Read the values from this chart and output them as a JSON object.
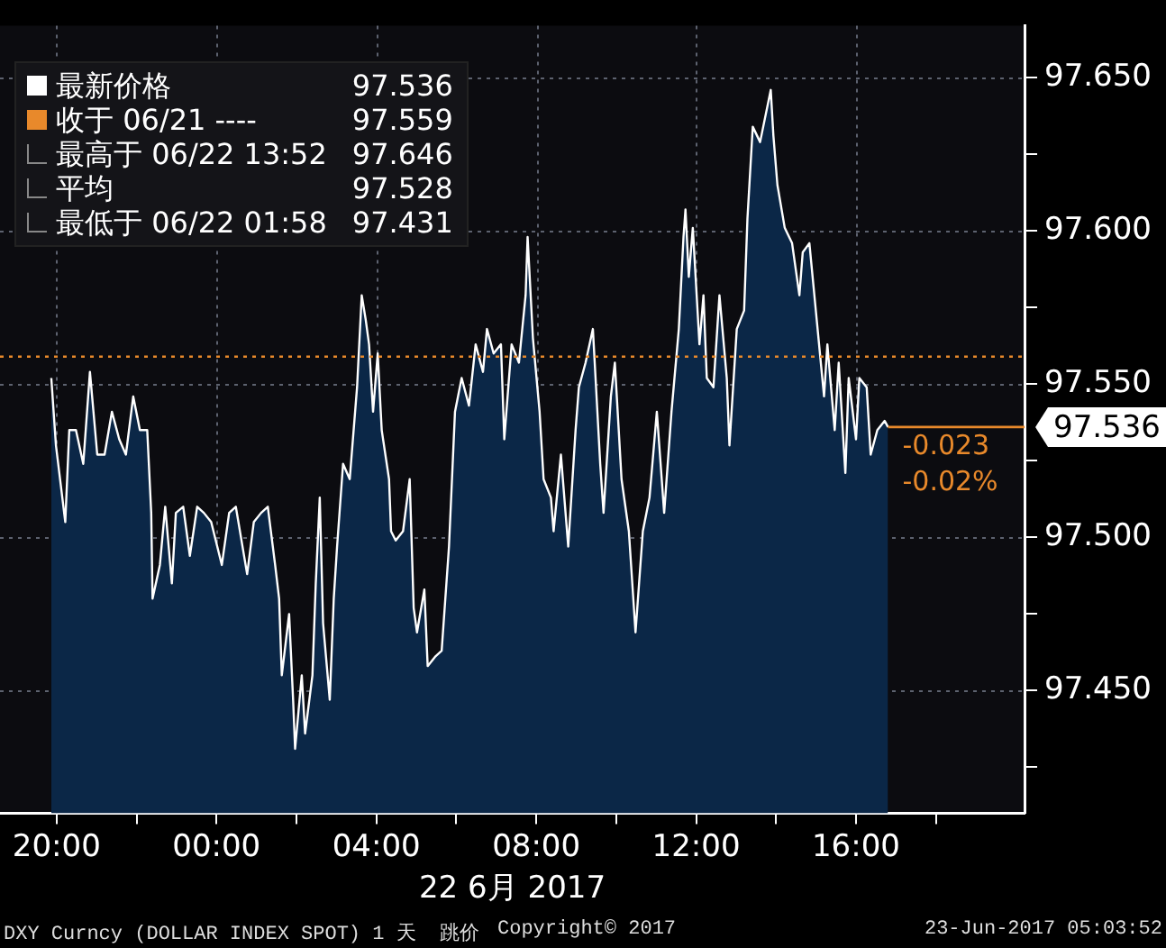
{
  "chart_data": {
    "type": "area",
    "xlabel": "22 6月 2017",
    "x": [
      "2017-06-21T19:52",
      "2017-06-21T19:59",
      "2017-06-21T20:13",
      "2017-06-21T20:19",
      "2017-06-21T20:29",
      "2017-06-21T20:40",
      "2017-06-21T20:50",
      "2017-06-21T21:01",
      "2017-06-21T21:12",
      "2017-06-21T21:23",
      "2017-06-21T21:34",
      "2017-06-21T21:44",
      "2017-06-21T21:55",
      "2017-06-21T22:05",
      "2017-06-21T22:16",
      "2017-06-21T22:22",
      "2017-06-21T22:24",
      "2017-06-21T22:35",
      "2017-06-21T22:43",
      "2017-06-21T22:53",
      "2017-06-21T22:59",
      "2017-06-21T23:10",
      "2017-06-21T23:20",
      "2017-06-21T23:31",
      "2017-06-21T23:41",
      "2017-06-21T23:52",
      "2017-06-22T00:08",
      "2017-06-22T00:19",
      "2017-06-22T00:29",
      "2017-06-22T00:46",
      "2017-06-22T00:56",
      "2017-06-22T01:07",
      "2017-06-22T01:17",
      "2017-06-22T01:28",
      "2017-06-22T01:34",
      "2017-06-22T01:38",
      "2017-06-22T01:49",
      "2017-06-22T01:55",
      "2017-06-22T01:58",
      "2017-06-22T02:08",
      "2017-06-22T02:13",
      "2017-06-22T02:24",
      "2017-06-22T02:29",
      "2017-06-22T02:35",
      "2017-06-22T02:40",
      "2017-06-22T02:50",
      "2017-06-22T02:56",
      "2017-06-22T03:01",
      "2017-06-22T03:10",
      "2017-06-22T03:20",
      "2017-06-22T03:31",
      "2017-06-22T03:38",
      "2017-06-22T03:44",
      "2017-06-22T03:49",
      "2017-06-22T03:55",
      "2017-06-22T04:02",
      "2017-06-22T04:08",
      "2017-06-22T04:19",
      "2017-06-22T04:22",
      "2017-06-22T04:29",
      "2017-06-22T04:40",
      "2017-06-22T04:50",
      "2017-06-22T04:56",
      "2017-06-22T05:01",
      "2017-06-22T05:12",
      "2017-06-22T05:17",
      "2017-06-22T05:28",
      "2017-06-22T05:38",
      "2017-06-22T05:49",
      "2017-06-22T05:58",
      "2017-06-22T06:08",
      "2017-06-22T06:19",
      "2017-06-22T06:29",
      "2017-06-22T06:40",
      "2017-06-22T06:46",
      "2017-06-22T06:56",
      "2017-06-22T07:07",
      "2017-06-22T07:12",
      "2017-06-22T07:23",
      "2017-06-22T07:34",
      "2017-06-22T07:44",
      "2017-06-22T07:47",
      "2017-06-22T07:55",
      "2017-06-22T08:05",
      "2017-06-22T08:11",
      "2017-06-22T08:22",
      "2017-06-22T08:26",
      "2017-06-22T08:37",
      "2017-06-22T08:48",
      "2017-06-22T08:59",
      "2017-06-22T09:04",
      "2017-06-22T09:14",
      "2017-06-22T09:25",
      "2017-06-22T09:36",
      "2017-06-22T09:41",
      "2017-06-22T09:52",
      "2017-06-22T09:58",
      "2017-06-22T10:08",
      "2017-06-22T10:19",
      "2017-06-22T10:29",
      "2017-06-22T10:40",
      "2017-06-22T10:50",
      "2017-06-22T11:01",
      "2017-06-22T11:12",
      "2017-06-22T11:23",
      "2017-06-22T11:34",
      "2017-06-22T11:41",
      "2017-06-22T11:44",
      "2017-06-22T11:49",
      "2017-06-22T11:55",
      "2017-06-22T12:05",
      "2017-06-22T12:11",
      "2017-06-22T12:16",
      "2017-06-22T12:26",
      "2017-06-22T12:35",
      "2017-06-22T12:46",
      "2017-06-22T12:50",
      "2017-06-22T13:01",
      "2017-06-22T13:12",
      "2017-06-22T13:17",
      "2017-06-22T13:25",
      "2017-06-22T13:36",
      "2017-06-22T13:52",
      "2017-06-22T13:56",
      "2017-06-22T14:02",
      "2017-06-22T14:13",
      "2017-06-22T14:24",
      "2017-06-22T14:35",
      "2017-06-22T14:40",
      "2017-06-22T14:50",
      "2017-06-22T15:01",
      "2017-06-22T15:12",
      "2017-06-22T15:17",
      "2017-06-22T15:28",
      "2017-06-22T15:34",
      "2017-06-22T15:44",
      "2017-06-22T15:49",
      "2017-06-22T16:00",
      "2017-06-22T16:05",
      "2017-06-22T16:16",
      "2017-06-22T16:22",
      "2017-06-22T16:32",
      "2017-06-22T16:43",
      "2017-06-22T16:48"
    ],
    "series": [
      {
        "name": "最新价格",
        "color": "#ffffff",
        "values": [
          97.552,
          97.53,
          97.505,
          97.535,
          97.535,
          97.524,
          97.554,
          97.527,
          97.527,
          97.541,
          97.532,
          97.527,
          97.546,
          97.535,
          97.535,
          97.508,
          97.48,
          97.491,
          97.51,
          97.485,
          97.508,
          97.51,
          97.494,
          97.51,
          97.508,
          97.505,
          97.491,
          97.508,
          97.51,
          97.488,
          97.505,
          97.508,
          97.51,
          97.491,
          97.48,
          97.455,
          97.475,
          97.447,
          97.431,
          97.455,
          97.436,
          97.455,
          97.485,
          97.513,
          97.472,
          97.447,
          97.48,
          97.497,
          97.524,
          97.519,
          97.549,
          97.579,
          97.571,
          97.563,
          97.541,
          97.56,
          97.535,
          97.519,
          97.502,
          97.499,
          97.502,
          97.519,
          97.477,
          97.469,
          97.483,
          97.458,
          97.461,
          97.463,
          97.497,
          97.541,
          97.552,
          97.543,
          97.563,
          97.554,
          97.568,
          97.56,
          97.563,
          97.532,
          97.563,
          97.557,
          97.579,
          97.598,
          97.565,
          97.541,
          97.519,
          97.513,
          97.502,
          97.527,
          97.497,
          97.535,
          97.549,
          97.557,
          97.568,
          97.524,
          97.508,
          97.546,
          97.557,
          97.519,
          97.502,
          97.469,
          97.502,
          97.513,
          97.541,
          97.508,
          97.541,
          97.568,
          97.598,
          97.607,
          97.585,
          97.601,
          97.563,
          97.579,
          97.552,
          97.549,
          97.579,
          97.552,
          97.53,
          97.568,
          97.574,
          97.604,
          97.634,
          97.629,
          97.646,
          97.631,
          97.615,
          97.601,
          97.596,
          97.579,
          97.593,
          97.596,
          97.571,
          97.546,
          97.563,
          97.535,
          97.557,
          97.521,
          97.552,
          97.532,
          97.552,
          97.549,
          97.527,
          97.535,
          97.538,
          97.536
        ]
      }
    ],
    "xlim": [
      "2017-06-21T18:35",
      "2017-06-22T20:13"
    ],
    "xticks": [
      {
        "value": "2017-06-21T20:00",
        "label": "20:00"
      },
      {
        "value": "2017-06-21T22:00",
        "label": null
      },
      {
        "value": "2017-06-22T00:00",
        "label": "00:00"
      },
      {
        "value": "2017-06-22T02:00",
        "label": null
      },
      {
        "value": "2017-06-22T04:00",
        "label": "04:00"
      },
      {
        "value": "2017-06-22T06:00",
        "label": null
      },
      {
        "value": "2017-06-22T08:00",
        "label": "08:00"
      },
      {
        "value": "2017-06-22T10:00",
        "label": null
      },
      {
        "value": "2017-06-22T12:00",
        "label": "12:00"
      },
      {
        "value": "2017-06-22T14:00",
        "label": null
      },
      {
        "value": "2017-06-22T16:00",
        "label": "16:00"
      },
      {
        "value": "2017-06-22T18:00",
        "label": null
      }
    ],
    "ylim": [
      97.41,
      97.667
    ],
    "yticks": [
      {
        "value": 97.425,
        "label": null
      },
      {
        "value": 97.45,
        "label": "97.450"
      },
      {
        "value": 97.475,
        "label": null
      },
      {
        "value": 97.5,
        "label": "97.500"
      },
      {
        "value": 97.525,
        "label": null
      },
      {
        "value": 97.55,
        "label": "97.550"
      },
      {
        "value": 97.575,
        "label": null
      },
      {
        "value": 97.6,
        "label": "97.600"
      },
      {
        "value": 97.625,
        "label": null
      },
      {
        "value": 97.65,
        "label": "97.650"
      }
    ],
    "ref_lines": [
      {
        "axis": "y",
        "value": 97.559,
        "label": "收于 06/21 ----",
        "color": "#e8892b",
        "line_style": "dotted"
      },
      {
        "axis": "y",
        "value": 97.536,
        "label": "97.536",
        "color": "#e8892b",
        "line_style": "solid"
      }
    ],
    "annotations": [
      "97.536",
      "97.559",
      "最高于 06/22 13:52",
      "97.646",
      "平均",
      "97.528",
      "最低于 06/22 01:58",
      "97.431",
      "-0.023",
      "-0.02%",
      "DXY Curncy (DOLLAR INDEX SPOT) 1 天  跳价",
      "Copyright© 2017",
      "23-Jun-2017 05:03:52"
    ],
    "grid": true,
    "legend": "top left",
    "line_style": "solid",
    "marker": "none"
  }
}
